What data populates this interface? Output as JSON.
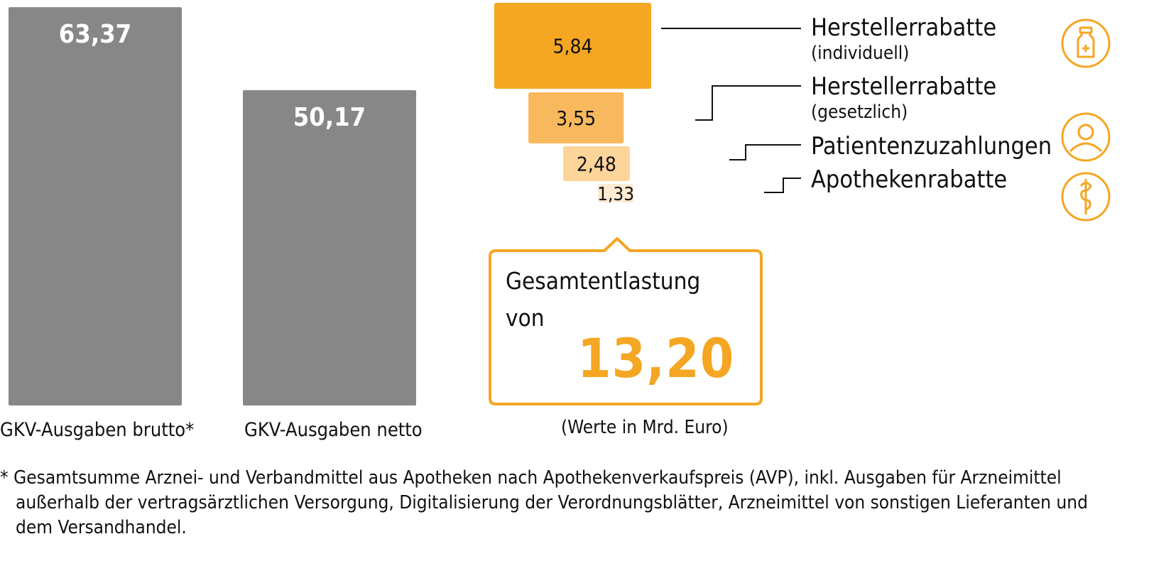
{
  "chart_data": [
    {
      "type": "bar",
      "categories": [
        "GKV-Ausgaben brutto*",
        "GKV-Ausgaben netto"
      ],
      "values": [
        63.37,
        50.17
      ],
      "value_labels": [
        "63,37",
        "50,17"
      ],
      "color": "#878787",
      "title": "",
      "xlabel": "",
      "ylabel": ""
    },
    {
      "type": "bar",
      "orientation": "horizontal",
      "series": [
        {
          "name": "Herstellerrabatte",
          "sub": "(individuell)",
          "value": 5.84,
          "value_label": "5,84",
          "color": "#F5A623",
          "icon": "medicine-bottle-icon"
        },
        {
          "name": "Herstellerrabatte",
          "sub": "(gesetzlich)",
          "value": 3.55,
          "value_label": "3,55",
          "color": "#F8B95E",
          "icon": ""
        },
        {
          "name": "Patientenzuzahlungen",
          "sub": "",
          "value": 2.48,
          "value_label": "2,48",
          "color": "#FDD49A",
          "icon": "person-icon"
        },
        {
          "name": "Apothekenrabatte",
          "sub": "",
          "value": 1.33,
          "value_label": "1,33",
          "color": "#FEEBD2",
          "icon": "caduceus-icon"
        }
      ]
    }
  ],
  "callout": {
    "line1": "Gesamtentlastung",
    "line2": "von",
    "total": "13,20",
    "border_color": "#F5A623"
  },
  "unit_note": "(Werte in Mrd. Euro)",
  "footnote": {
    "line1": "* Gesamtsumme Arznei- und Verbandmittel aus Apotheken nach Apothekenverkaufspreis (AVP), inkl. Ausgaben für Arzneimittel",
    "line2": "außerhalb der vertragsärztlichen Versorgung, Digitalisierung der Verordnungsblätter, Arzneimittel von sonstigen Lieferanten und",
    "line3": "dem Versandhandel."
  }
}
